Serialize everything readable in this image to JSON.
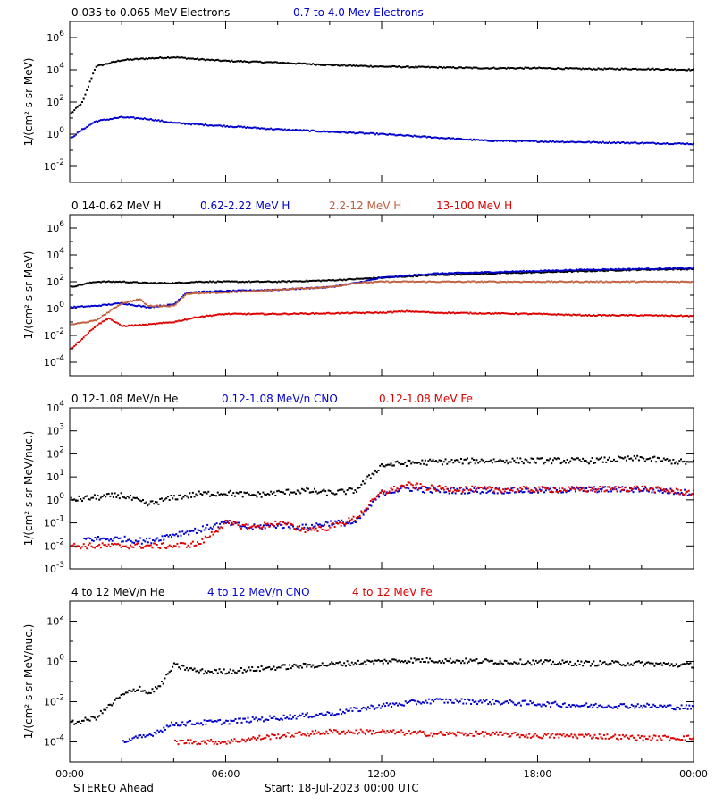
{
  "chart_data": [
    {
      "type": "scatter",
      "ylabel": "1/(cm² s sr MeV)",
      "ylog": true,
      "ylim_exp": [
        -3,
        7
      ],
      "ytick_exps": [
        -2,
        0,
        2,
        4,
        6
      ],
      "series": [
        {
          "name": "0.035 to 0.065 MeV Electrons",
          "color": "#000000",
          "points": [
            [
              0,
              1.2
            ],
            [
              0.5,
              2.0
            ],
            [
              1,
              4.2
            ],
            [
              2,
              4.6
            ],
            [
              3,
              4.7
            ],
            [
              4,
              4.78
            ],
            [
              5,
              4.65
            ],
            [
              6,
              4.55
            ],
            [
              8,
              4.45
            ],
            [
              10,
              4.3
            ],
            [
              12,
              4.2
            ],
            [
              14,
              4.15
            ],
            [
              16,
              4.1
            ],
            [
              18,
              4.1
            ],
            [
              20,
              4.05
            ],
            [
              22,
              4.05
            ],
            [
              24,
              4.0
            ]
          ]
        },
        {
          "name": "0.7 to 4.0 Mev Electrons",
          "color": "#0000cc",
          "points": [
            [
              0,
              -0.3
            ],
            [
              0.5,
              0.3
            ],
            [
              1,
              0.8
            ],
            [
              2,
              1.05
            ],
            [
              3,
              0.95
            ],
            [
              4,
              0.7
            ],
            [
              6,
              0.5
            ],
            [
              8,
              0.3
            ],
            [
              10,
              0.15
            ],
            [
              12,
              0.0
            ],
            [
              14,
              -0.2
            ],
            [
              16,
              -0.4
            ],
            [
              18,
              -0.45
            ],
            [
              20,
              -0.5
            ],
            [
              22,
              -0.55
            ],
            [
              24,
              -0.6
            ]
          ]
        }
      ]
    },
    {
      "type": "scatter",
      "ylabel": "1/(cm² s sr MeV)",
      "ylog": true,
      "ylim_exp": [
        -5,
        7
      ],
      "ytick_exps": [
        -4,
        -2,
        0,
        2,
        4,
        6
      ],
      "series": [
        {
          "name": "0.14-0.62 MeV H",
          "color": "#000000",
          "points": [
            [
              0,
              1.6
            ],
            [
              1,
              2.0
            ],
            [
              2,
              2.0
            ],
            [
              3,
              1.9
            ],
            [
              4,
              1.9
            ],
            [
              5,
              2.0
            ],
            [
              6,
              2.0
            ],
            [
              8,
              2.0
            ],
            [
              10,
              2.1
            ],
            [
              12,
              2.3
            ],
            [
              14,
              2.5
            ],
            [
              16,
              2.6
            ],
            [
              18,
              2.7
            ],
            [
              20,
              2.8
            ],
            [
              22,
              2.9
            ],
            [
              24,
              2.95
            ]
          ]
        },
        {
          "name": "0.62-2.22 MeV H",
          "color": "#0000cc",
          "points": [
            [
              0,
              0.1
            ],
            [
              1,
              0.2
            ],
            [
              2,
              0.4
            ],
            [
              3,
              0.1
            ],
            [
              4,
              0.3
            ],
            [
              4.5,
              1.2
            ],
            [
              6,
              1.3
            ],
            [
              8,
              1.4
            ],
            [
              10,
              1.6
            ],
            [
              11,
              1.9
            ],
            [
              12,
              2.3
            ],
            [
              14,
              2.6
            ],
            [
              16,
              2.7
            ],
            [
              18,
              2.8
            ],
            [
              20,
              2.9
            ],
            [
              22,
              2.95
            ],
            [
              24,
              3.0
            ]
          ]
        },
        {
          "name": "2.2-12 MeV H",
          "color": "#c06040",
          "points": [
            [
              0,
              -1.2
            ],
            [
              1,
              -0.9
            ],
            [
              2,
              0.4
            ],
            [
              2.7,
              0.7
            ],
            [
              3,
              0.2
            ],
            [
              4,
              0.2
            ],
            [
              4.5,
              1.1
            ],
            [
              6,
              1.2
            ],
            [
              8,
              1.4
            ],
            [
              10,
              1.6
            ],
            [
              11,
              1.9
            ],
            [
              12,
              2.0
            ],
            [
              14,
              2.0
            ],
            [
              16,
              2.0
            ],
            [
              18,
              2.0
            ],
            [
              20,
              2.0
            ],
            [
              22,
              2.0
            ],
            [
              24,
              2.0
            ]
          ]
        },
        {
          "name": "13-100 MeV H",
          "color": "#dd0000",
          "points": [
            [
              0,
              -3.1
            ],
            [
              0.5,
              -2.2
            ],
            [
              1,
              -1.3
            ],
            [
              1.5,
              -0.7
            ],
            [
              2,
              -1.3
            ],
            [
              3,
              -1.2
            ],
            [
              4,
              -1.0
            ],
            [
              5,
              -0.6
            ],
            [
              6,
              -0.4
            ],
            [
              8,
              -0.4
            ],
            [
              10,
              -0.35
            ],
            [
              12,
              -0.3
            ],
            [
              13,
              -0.2
            ],
            [
              14,
              -0.3
            ],
            [
              16,
              -0.35
            ],
            [
              18,
              -0.4
            ],
            [
              20,
              -0.5
            ],
            [
              22,
              -0.5
            ],
            [
              24,
              -0.55
            ]
          ]
        }
      ]
    },
    {
      "type": "scatter",
      "ylabel": "1/(cm² s sr MeV/nuc.)",
      "ylog": true,
      "ylim_exp": [
        -3,
        4
      ],
      "ytick_exps": [
        -3,
        -2,
        -1,
        0,
        1,
        2,
        3,
        4
      ],
      "series": [
        {
          "name": "0.12-1.08 MeV/n He",
          "color": "#000000",
          "points": [
            [
              0,
              0.0
            ],
            [
              1,
              0.1
            ],
            [
              2,
              0.2
            ],
            [
              3,
              -0.2
            ],
            [
              4,
              0.1
            ],
            [
              5,
              0.25
            ],
            [
              6,
              0.3
            ],
            [
              7,
              0.2
            ],
            [
              8,
              0.3
            ],
            [
              9,
              0.4
            ],
            [
              10,
              0.3
            ],
            [
              11,
              0.4
            ],
            [
              12,
              1.5
            ],
            [
              13,
              1.6
            ],
            [
              14,
              1.65
            ],
            [
              16,
              1.7
            ],
            [
              18,
              1.7
            ],
            [
              20,
              1.7
            ],
            [
              22,
              1.8
            ],
            [
              24,
              1.6
            ]
          ]
        },
        {
          "name": "0.12-1.08 MeV/n CNO",
          "color": "#0000cc",
          "points": [
            [
              0.5,
              -1.7
            ],
            [
              1,
              -1.7
            ],
            [
              2,
              -1.7
            ],
            [
              3,
              -1.8
            ],
            [
              4,
              -1.5
            ],
            [
              5,
              -1.3
            ],
            [
              6,
              -1.0
            ],
            [
              7,
              -1.2
            ],
            [
              8,
              -1.1
            ],
            [
              9,
              -1.2
            ],
            [
              10,
              -1.0
            ],
            [
              11,
              -1.0
            ],
            [
              12,
              0.3
            ],
            [
              13,
              0.5
            ],
            [
              14,
              0.4
            ],
            [
              16,
              0.4
            ],
            [
              18,
              0.4
            ],
            [
              20,
              0.45
            ],
            [
              22,
              0.45
            ],
            [
              24,
              0.3
            ]
          ]
        },
        {
          "name": "0.12-1.08 MeV Fe",
          "color": "#dd0000",
          "points": [
            [
              0,
              -2.0
            ],
            [
              1,
              -2.0
            ],
            [
              2,
              -2.0
            ],
            [
              3,
              -2.0
            ],
            [
              4,
              -2.0
            ],
            [
              5,
              -1.9
            ],
            [
              6,
              -1.0
            ],
            [
              7,
              -1.2
            ],
            [
              8,
              -1.0
            ],
            [
              9,
              -1.3
            ],
            [
              10,
              -1.2
            ],
            [
              11,
              -0.8
            ],
            [
              12,
              0.3
            ],
            [
              13,
              0.65
            ],
            [
              14,
              0.5
            ],
            [
              16,
              0.45
            ],
            [
              18,
              0.45
            ],
            [
              20,
              0.45
            ],
            [
              22,
              0.5
            ],
            [
              24,
              0.3
            ]
          ]
        }
      ]
    },
    {
      "type": "scatter",
      "ylabel": "1/(cm² s sr MeV/nuc.)",
      "ylog": true,
      "ylim_exp": [
        -5,
        3
      ],
      "ytick_exps": [
        -4,
        -2,
        0,
        2
      ],
      "series": [
        {
          "name": "4 to 12 MeV/n He",
          "color": "#000000",
          "points": [
            [
              0,
              -3.1
            ],
            [
              1,
              -2.8
            ],
            [
              2,
              -1.7
            ],
            [
              2.7,
              -1.3
            ],
            [
              3,
              -1.6
            ],
            [
              3.5,
              -1.2
            ],
            [
              4,
              -0.2
            ],
            [
              5,
              -0.5
            ],
            [
              6,
              -0.5
            ],
            [
              8,
              -0.3
            ],
            [
              10,
              -0.15
            ],
            [
              12,
              0.0
            ],
            [
              13,
              0.05
            ],
            [
              14,
              0.05
            ],
            [
              16,
              0.0
            ],
            [
              18,
              -0.05
            ],
            [
              20,
              -0.1
            ],
            [
              22,
              -0.1
            ],
            [
              24,
              -0.2
            ]
          ]
        },
        {
          "name": "4 to 12 MeV/n CNO",
          "color": "#0000cc",
          "points": [
            [
              2,
              -4.0
            ],
            [
              3,
              -3.7
            ],
            [
              4,
              -3.1
            ],
            [
              6,
              -3.0
            ],
            [
              8,
              -2.8
            ],
            [
              10,
              -2.6
            ],
            [
              12,
              -2.2
            ],
            [
              14,
              -1.95
            ],
            [
              16,
              -2.0
            ],
            [
              18,
              -2.1
            ],
            [
              20,
              -2.2
            ],
            [
              22,
              -2.2
            ],
            [
              24,
              -2.3
            ]
          ]
        },
        {
          "name": "4 to 12 MeV Fe",
          "color": "#dd0000",
          "points": [
            [
              4,
              -4.0
            ],
            [
              6,
              -4.0
            ],
            [
              8,
              -3.7
            ],
            [
              10,
              -3.5
            ],
            [
              12,
              -3.5
            ],
            [
              14,
              -3.6
            ],
            [
              16,
              -3.6
            ],
            [
              18,
              -3.7
            ],
            [
              20,
              -3.7
            ],
            [
              22,
              -3.8
            ],
            [
              24,
              -3.8
            ]
          ]
        }
      ]
    }
  ],
  "x_axis": {
    "range_hours": [
      0,
      24
    ],
    "tick_hours": [
      0,
      6,
      12,
      18,
      24
    ],
    "tick_labels": [
      "00:00",
      "06:00",
      "12:00",
      "18:00",
      "00:00"
    ]
  },
  "footer": {
    "spacecraft": "STEREO Ahead",
    "start": "Start: 18-Jul-2023 00:00 UTC"
  }
}
